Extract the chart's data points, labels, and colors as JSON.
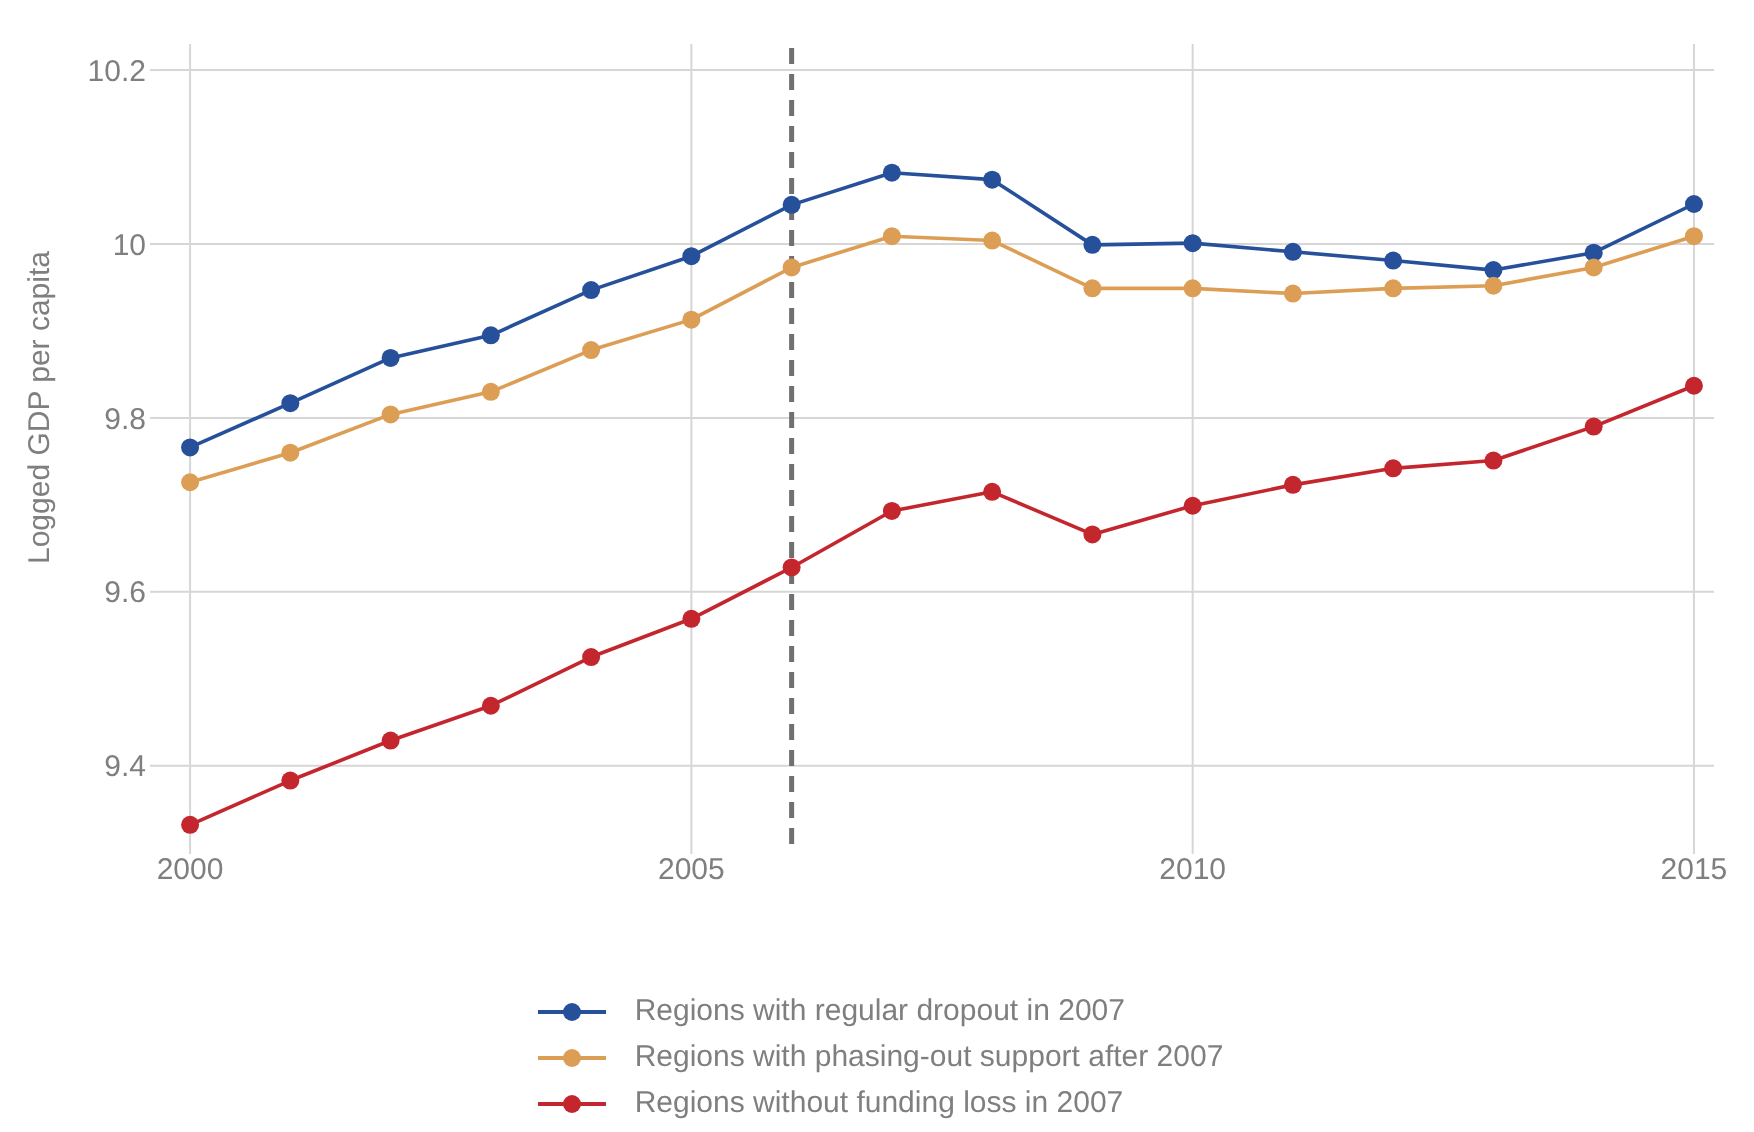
{
  "chart_data": {
    "type": "line",
    "ylabel": "Logged GDP per capita",
    "x": [
      2000,
      2001,
      2002,
      2003,
      2004,
      2005,
      2006,
      2007,
      2008,
      2009,
      2010,
      2011,
      2012,
      2013,
      2014,
      2015
    ],
    "series": [
      {
        "name": "Regions with regular dropout in 2007",
        "color": "#27509b",
        "values": [
          9.766,
          9.817,
          9.869,
          9.895,
          9.947,
          9.986,
          10.045,
          10.082,
          10.074,
          9.999,
          10.001,
          9.991,
          9.981,
          9.97,
          9.99,
          10.046
        ]
      },
      {
        "name": "Regions with phasing-out support after 2007",
        "color": "#dc9e55",
        "values": [
          9.726,
          9.76,
          9.804,
          9.83,
          9.878,
          9.913,
          9.973,
          10.009,
          10.004,
          9.949,
          9.949,
          9.943,
          9.949,
          9.952,
          9.973,
          10.009
        ]
      },
      {
        "name": "Regions without funding loss in 2007",
        "color": "#c4262e",
        "values": [
          9.332,
          9.383,
          9.429,
          9.469,
          9.525,
          9.569,
          9.628,
          9.693,
          9.715,
          9.666,
          9.699,
          9.723,
          9.742,
          9.751,
          9.79,
          9.837
        ]
      }
    ],
    "xlim": [
      1999.7,
      2015.2
    ],
    "xticks": [
      2000,
      2005,
      2010,
      2015
    ],
    "ylim": [
      9.31,
      10.23
    ],
    "yticks": [
      9.4,
      9.6,
      9.8,
      10,
      10.2
    ],
    "ref_lines": [
      {
        "axis": "x",
        "value": 2006,
        "color": "#707070",
        "line_style": "dashed"
      }
    ],
    "grid": true,
    "legend": "bottom",
    "marker": "circle",
    "line_style": "solid"
  }
}
